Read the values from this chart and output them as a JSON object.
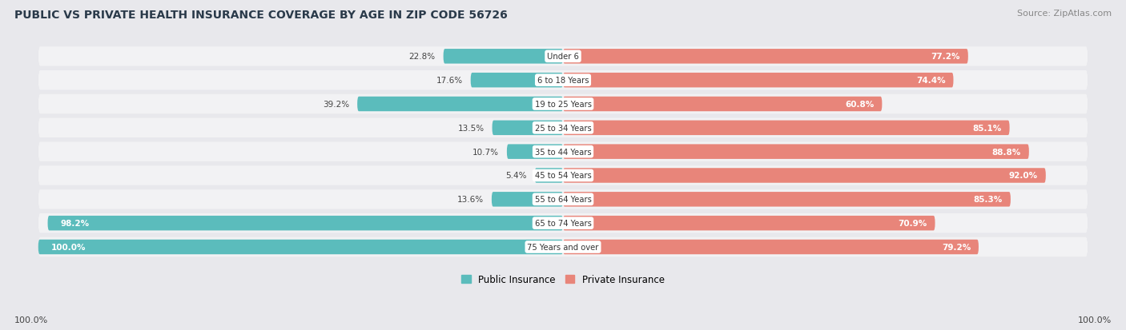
{
  "title": "PUBLIC VS PRIVATE HEALTH INSURANCE COVERAGE BY AGE IN ZIP CODE 56726",
  "source": "Source: ZipAtlas.com",
  "categories": [
    "Under 6",
    "6 to 18 Years",
    "19 to 25 Years",
    "25 to 34 Years",
    "35 to 44 Years",
    "45 to 54 Years",
    "55 to 64 Years",
    "65 to 74 Years",
    "75 Years and over"
  ],
  "public_values": [
    22.8,
    17.6,
    39.2,
    13.5,
    10.7,
    5.4,
    13.6,
    98.2,
    100.0
  ],
  "private_values": [
    77.2,
    74.4,
    60.8,
    85.1,
    88.8,
    92.0,
    85.3,
    70.9,
    79.2
  ],
  "public_color": "#5bbcbc",
  "private_color": "#e8857a",
  "private_color_light": "#f0b0a8",
  "background_color": "#e8e8ec",
  "row_bg": "#f2f2f4",
  "row_shadow": "#d8d8dc",
  "public_label": "Public Insurance",
  "private_label": "Private Insurance",
  "axis_label_left": "100.0%",
  "axis_label_right": "100.0%",
  "title_color": "#2a3a4a",
  "source_color": "#888888",
  "label_dark_color": "#444444",
  "label_white_color": "#ffffff"
}
